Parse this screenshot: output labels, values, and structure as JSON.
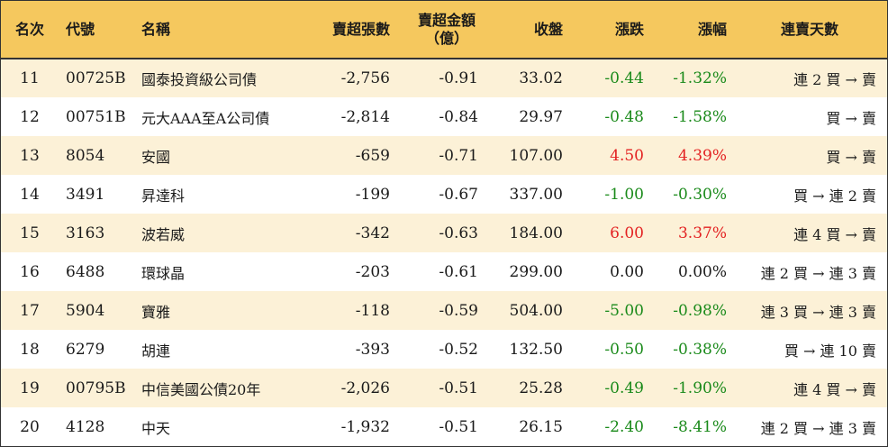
{
  "headers": {
    "rank": "名次",
    "code": "代號",
    "name": "名稱",
    "sell_lots": "賣超張數",
    "sell_amount_line1": "賣超金額",
    "sell_amount_line2": "（億）",
    "close": "收盤",
    "change": "漲跌",
    "pct": "漲幅",
    "streak": "連賣天數"
  },
  "colors": {
    "header_bg": "#f5c85e",
    "row_alt_bg": "#fcf1d7",
    "up": "#e32222",
    "down": "#1a8a1a"
  },
  "rows": [
    {
      "rank": "11",
      "code": "00725B",
      "name": "國泰投資級公司債",
      "sell_lots": "-2,756",
      "sell_amount": "-0.91",
      "close": "33.02",
      "change": "-0.44",
      "pct": "-1.32%",
      "dir": "down",
      "streak": "連 2 買 → 賣"
    },
    {
      "rank": "12",
      "code": "00751B",
      "name": "元大AAA至A公司債",
      "sell_lots": "-2,814",
      "sell_amount": "-0.84",
      "close": "29.97",
      "change": "-0.48",
      "pct": "-1.58%",
      "dir": "down",
      "streak": "買 → 賣"
    },
    {
      "rank": "13",
      "code": "8054",
      "name": "安國",
      "sell_lots": "-659",
      "sell_amount": "-0.71",
      "close": "107.00",
      "change": "4.50",
      "pct": "4.39%",
      "dir": "up",
      "streak": "買 → 賣"
    },
    {
      "rank": "14",
      "code": "3491",
      "name": "昇達科",
      "sell_lots": "-199",
      "sell_amount": "-0.67",
      "close": "337.00",
      "change": "-1.00",
      "pct": "-0.30%",
      "dir": "down",
      "streak": "買 → 連 2 賣"
    },
    {
      "rank": "15",
      "code": "3163",
      "name": "波若威",
      "sell_lots": "-342",
      "sell_amount": "-0.63",
      "close": "184.00",
      "change": "6.00",
      "pct": "3.37%",
      "dir": "up",
      "streak": "連 4 買 → 賣"
    },
    {
      "rank": "16",
      "code": "6488",
      "name": "環球晶",
      "sell_lots": "-203",
      "sell_amount": "-0.61",
      "close": "299.00",
      "change": "0.00",
      "pct": "0.00%",
      "dir": "flat",
      "streak": "連 2 買 → 連 3 賣"
    },
    {
      "rank": "17",
      "code": "5904",
      "name": "寶雅",
      "sell_lots": "-118",
      "sell_amount": "-0.59",
      "close": "504.00",
      "change": "-5.00",
      "pct": "-0.98%",
      "dir": "down",
      "streak": "連 3 買 → 連 3 賣"
    },
    {
      "rank": "18",
      "code": "6279",
      "name": "胡連",
      "sell_lots": "-393",
      "sell_amount": "-0.52",
      "close": "132.50",
      "change": "-0.50",
      "pct": "-0.38%",
      "dir": "down",
      "streak": "買 → 連 10 賣"
    },
    {
      "rank": "19",
      "code": "00795B",
      "name": "中信美國公債20年",
      "sell_lots": "-2,026",
      "sell_amount": "-0.51",
      "close": "25.28",
      "change": "-0.49",
      "pct": "-1.90%",
      "dir": "down",
      "streak": "連 4 買 → 賣"
    },
    {
      "rank": "20",
      "code": "4128",
      "name": "中天",
      "sell_lots": "-1,932",
      "sell_amount": "-0.51",
      "close": "26.15",
      "change": "-2.40",
      "pct": "-8.41%",
      "dir": "down",
      "streak": "連 2 買 → 連 3 賣"
    }
  ]
}
